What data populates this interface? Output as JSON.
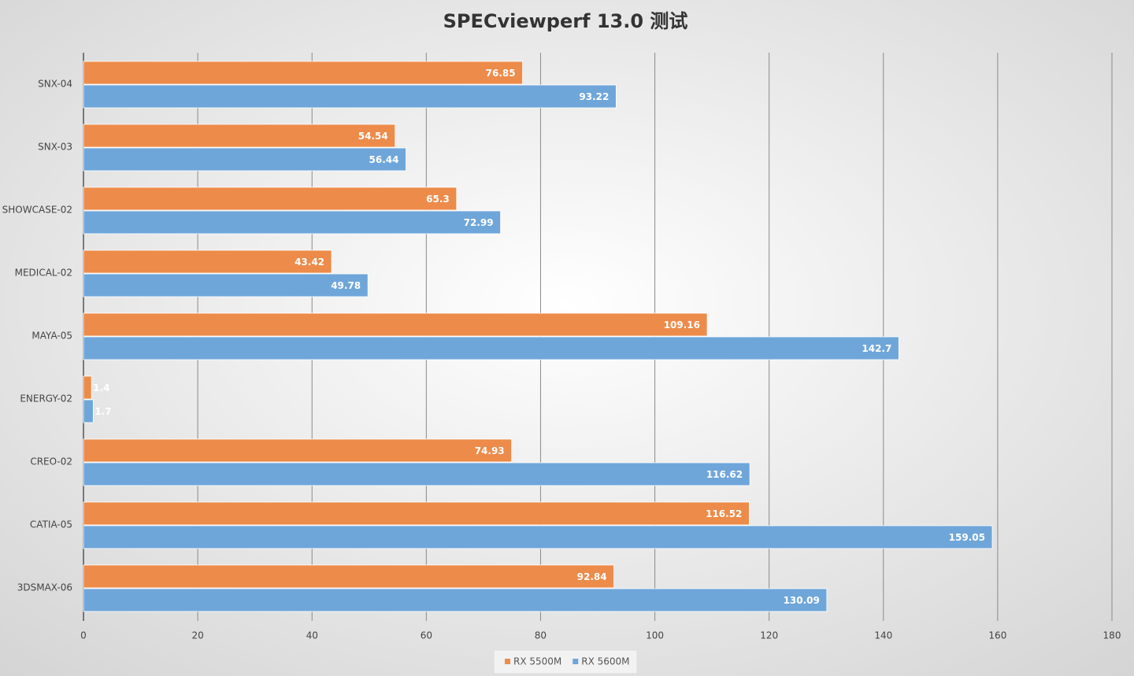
{
  "chart_data": {
    "type": "hbar",
    "title": "SPECviewperf 13.0 测试",
    "categories": [
      "SNX-04",
      "SNX-03",
      "SHOWCASE-02",
      "MEDICAL-02",
      "MAYA-05",
      "ENERGY-02",
      "CREO-02",
      "CATIA-05",
      "3DSMAX-06"
    ],
    "series": [
      {
        "name": "RX 5500M",
        "color": "#ed8b4a",
        "values": [
          76.85,
          54.54,
          65.3,
          43.42,
          109.16,
          1.4,
          74.93,
          116.52,
          92.84
        ]
      },
      {
        "name": "RX 5600M",
        "color": "#6fa6da",
        "values": [
          93.22,
          56.44,
          72.99,
          49.78,
          142.7,
          1.7,
          116.62,
          159.05,
          130.09
        ]
      }
    ],
    "xlim": [
      0,
      180
    ],
    "xticks": [
      0,
      20,
      40,
      60,
      80,
      100,
      120,
      140,
      160,
      180
    ],
    "grid": true,
    "legend": "bottom"
  }
}
